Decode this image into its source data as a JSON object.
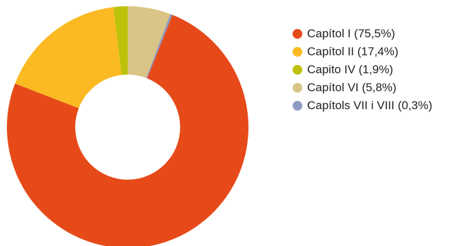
{
  "chart_data": {
    "type": "pie",
    "donut": true,
    "title": "",
    "slices": [
      {
        "label": "Capítol I (75,5%)",
        "value": 75.5,
        "color": "#E64A19"
      },
      {
        "label": "Capítol II (17,4%)",
        "value": 17.4,
        "color": "#FBBA22"
      },
      {
        "label": "Capito IV (1,9%)",
        "value": 1.9,
        "color": "#BDC20A"
      },
      {
        "label": "Capítol VI (5,8%)",
        "value": 5.8,
        "color": "#D9C585"
      },
      {
        "label": "Capítols VII i VIII (0,3%)",
        "value": 0.3,
        "color": "#8E9BC3"
      }
    ],
    "display_order": [
      3,
      4,
      0,
      1,
      2
    ],
    "legend_position": "right"
  }
}
